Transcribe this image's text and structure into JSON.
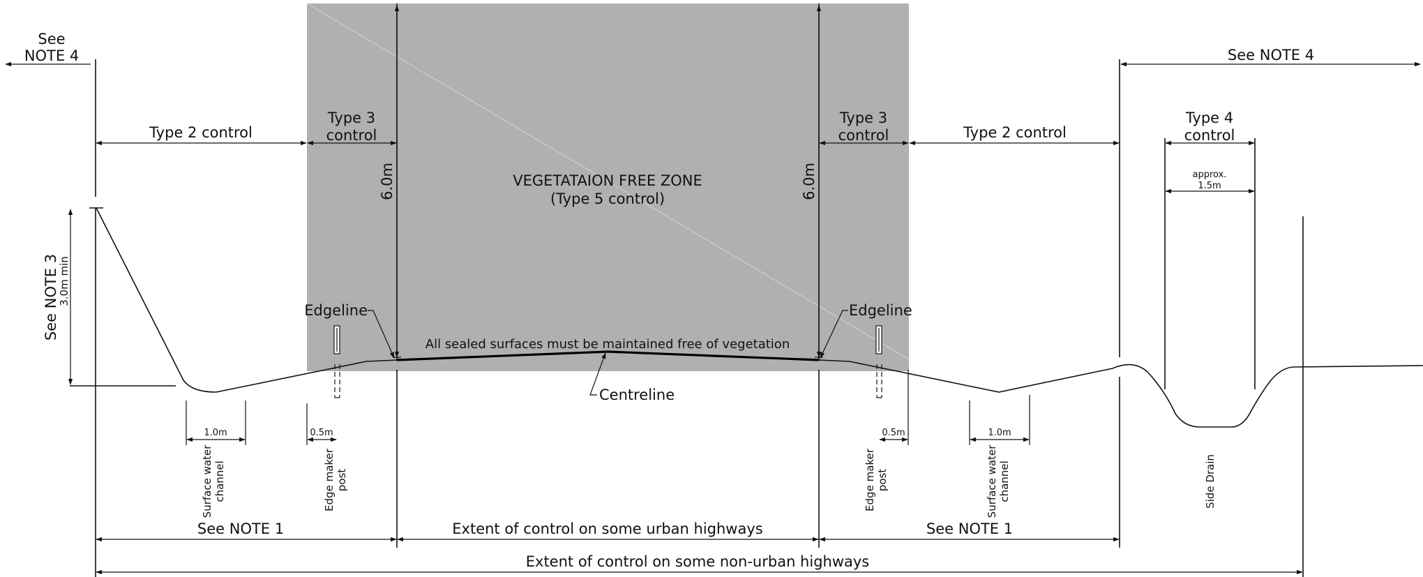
{
  "zone": {
    "title": "VEGETATAION FREE ZONE",
    "subtitle": "(Type 5 control)",
    "fill": "#b0b0b0"
  },
  "labels": {
    "see_left_line1": "See",
    "see_left_line2": "NOTE 4",
    "see_note4_right": "See NOTE 4",
    "type2_left": "Type 2 control",
    "type2_right": "Type 2 control",
    "type3_left_line1": "Type 3",
    "type3_left_line2": "control",
    "type3_right_line1": "Type 3",
    "type3_right_line2": "control",
    "type4_line1": "Type 4",
    "type4_line2": "control",
    "approx_line1": "approx.",
    "approx_line2": "1.5m",
    "height_left": "6.0m",
    "height_right": "6.0m",
    "see_note3": "See NOTE 3",
    "min_3m": "3.0m min",
    "edgeline_left": "Edgeline",
    "edgeline_right": "Edgeline",
    "sealed_note": "All sealed surfaces must be maintained free of vegetation",
    "centreline": "Centreline",
    "dim_1m_left": "1.0m",
    "dim_05_left": "0.5m",
    "dim_05_right": "0.5m",
    "dim_1m_right": "1.0m",
    "swc_left_line1": "Surface water",
    "swc_left_line2": "channel",
    "emp_left_line1": "Edge maker",
    "emp_left_line2": "post",
    "emp_right_line1": "Edge maker",
    "emp_right_line2": "post",
    "swc_right_line1": "Surface water",
    "swc_right_line2": "channel",
    "side_drain": "Side Drain",
    "see_note1_left": "See NOTE 1",
    "urban_extent": "Extent of control on some urban highways",
    "see_note1_right": "See NOTE 1",
    "nonurban_extent": "Extent of control on some non-urban highways"
  }
}
